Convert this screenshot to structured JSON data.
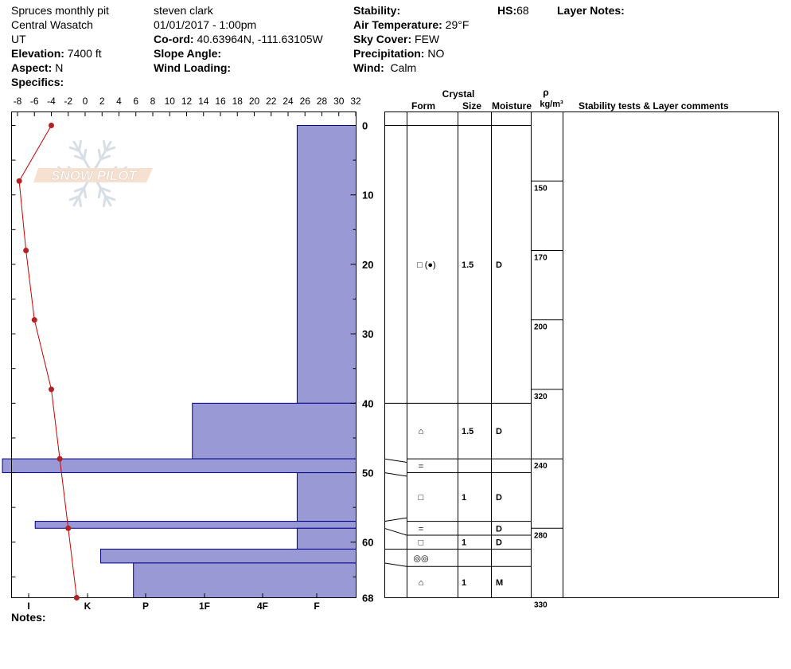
{
  "header": {
    "pit_name": "Spruces monthly pit",
    "range": "Central Wasatch",
    "state": "UT",
    "elevation_label": "Elevation:",
    "elevation": "7400 ft",
    "aspect_label": "Aspect:",
    "aspect": "N",
    "specifics_label": "Specifics:",
    "observer": "steven clark",
    "datetime": "01/01/2017 - 1:00pm",
    "coord_label": "Co-ord:",
    "coord": "40.63964N, -111.63105W",
    "slope_label": "Slope Angle:",
    "wind_loading_label": "Wind Loading:",
    "stability_label": "Stability:",
    "air_temp_label": "Air Temperature:",
    "air_temp": "29°F",
    "sky_label": "Sky Cover:",
    "sky": "FEW",
    "precip_label": "Precipitation:",
    "precip": "NO",
    "wind_label": "Wind:",
    "wind": "Calm",
    "hs_label": "HS:",
    "hs": "68",
    "layer_notes_label": "Layer Notes:",
    "notes_label": "Notes:"
  },
  "watermark": "SNOW PILOT",
  "table_headers": {
    "crystal": "Crystal",
    "form": "Form",
    "size": "Size",
    "moisture": "Moisture",
    "rho": "ρ",
    "density_unit": "kg/m³",
    "comments": "Stability tests & Layer comments"
  },
  "colors": {
    "hardness_fill": "#9999d6",
    "hardness_stroke": "#00008b",
    "temp_line": "#cc0000",
    "temp_point": "#b22222"
  },
  "chart_data": {
    "type": "snow-profile",
    "temperature_axis": {
      "ticks": [
        -8,
        -6,
        -4,
        -2,
        0,
        2,
        4,
        6,
        8,
        10,
        12,
        14,
        16,
        18,
        20,
        22,
        24,
        26,
        28,
        30,
        32
      ],
      "range": [
        -8,
        32
      ]
    },
    "depth_axis": {
      "ticks": [
        0,
        10,
        20,
        30,
        40,
        50,
        60,
        68
      ],
      "range": [
        0,
        68
      ]
    },
    "hardness_axis": {
      "labels": [
        "I",
        "K",
        "P",
        "1F",
        "4F",
        "F"
      ]
    },
    "temperature_profile": [
      {
        "depth": 0,
        "temp": -4
      },
      {
        "depth": 8,
        "temp": -7.8
      },
      {
        "depth": 18,
        "temp": -7
      },
      {
        "depth": 28,
        "temp": -6
      },
      {
        "depth": 38,
        "temp": -4
      },
      {
        "depth": 48,
        "temp": -3
      },
      {
        "depth": 58,
        "temp": -2
      },
      {
        "depth": 68,
        "temp": -1
      }
    ],
    "hardness_layers": [
      {
        "top": 0,
        "bottom": 40,
        "level": 0.18
      },
      {
        "top": 40,
        "bottom": 48,
        "level": 0.5
      },
      {
        "top": 48,
        "bottom": 50,
        "level": 1.08
      },
      {
        "top": 50,
        "bottom": 57,
        "level": 0.18
      },
      {
        "top": 57,
        "bottom": 58,
        "level": 0.98
      },
      {
        "top": 58,
        "bottom": 61,
        "level": 0.18
      },
      {
        "top": 61,
        "bottom": 63,
        "level": 0.78
      },
      {
        "top": 63,
        "bottom": 68,
        "level": 0.68
      }
    ],
    "density_markers": [
      {
        "depth": 8,
        "label": "150"
      },
      {
        "depth": 18,
        "label": "170"
      },
      {
        "depth": 28,
        "label": "200"
      },
      {
        "depth": 38,
        "label": "320"
      },
      {
        "depth": 48,
        "label": "240"
      },
      {
        "depth": 58,
        "label": "280"
      },
      {
        "depth": 68,
        "label": "330"
      }
    ],
    "layers": [
      {
        "top": 0,
        "bottom": 40,
        "form": "□ (●)",
        "size": "1.5",
        "moisture": "D"
      },
      {
        "top": 40,
        "bottom": 48,
        "form": "⌂",
        "size": "1.5",
        "moisture": "D"
      },
      {
        "top": 48,
        "bottom": 50,
        "form": "=",
        "size": "",
        "moisture": ""
      },
      {
        "top": 50,
        "bottom": 57,
        "form": "□",
        "size": "1",
        "moisture": "D"
      },
      {
        "top": 57,
        "bottom": 59,
        "form": "=",
        "size": "",
        "moisture": "D"
      },
      {
        "top": 59,
        "bottom": 61,
        "form": "□",
        "size": "1",
        "moisture": "D"
      },
      {
        "top": 61,
        "bottom": 63.5,
        "form": "◎◎",
        "size": "",
        "moisture": ""
      },
      {
        "top": 63.5,
        "bottom": 68,
        "form": "⌂",
        "size": "1",
        "moisture": "M"
      }
    ]
  }
}
